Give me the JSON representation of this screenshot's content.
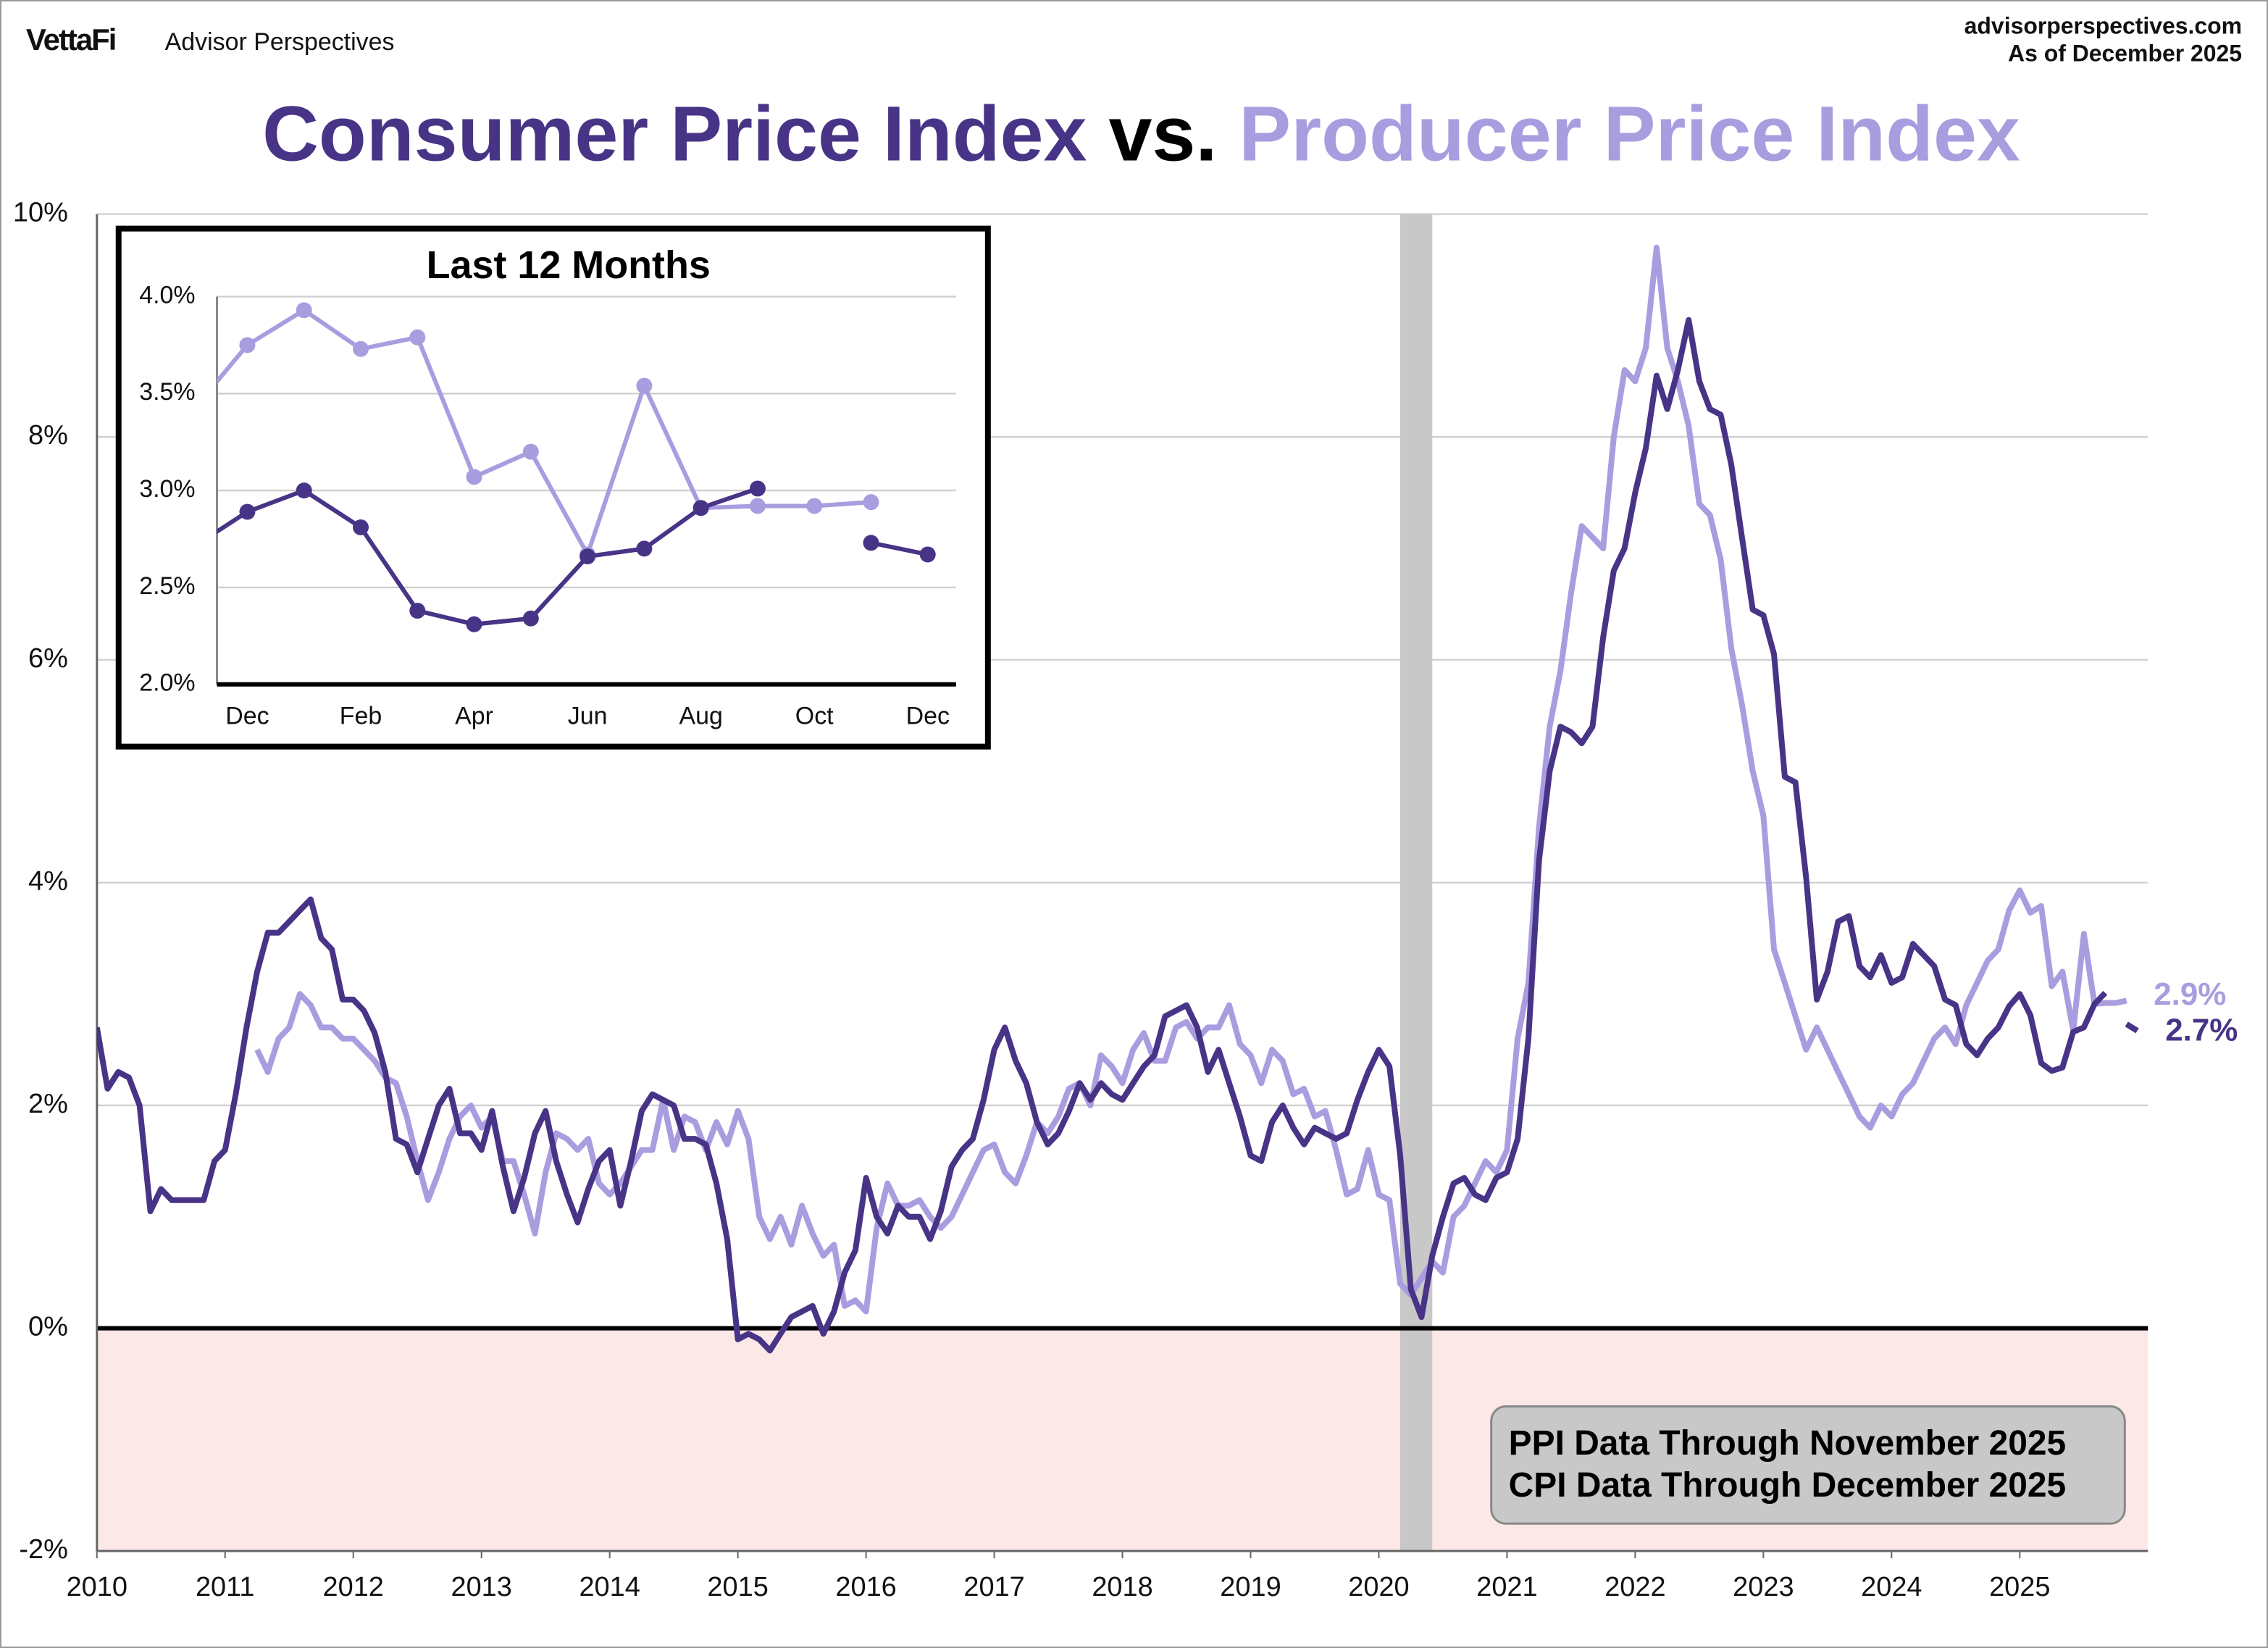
{
  "header": {
    "brand": "VettaFi",
    "product": "Advisor Perspectives",
    "site": "advisorperspectives.com",
    "date": "As of December 2025"
  },
  "chart_data": [
    {
      "type": "line",
      "title": [
        "Consumer Price Index",
        "vs.",
        "Producer Price Index"
      ],
      "annotations": [
        "PPI Data Through November 2025",
        "CPI Data Through December 2025"
      ],
      "x": [
        2010,
        2010.083,
        2010.167,
        2010.25,
        2010.333,
        2010.417,
        2010.5,
        2010.583,
        2010.667,
        2010.75,
        2010.833,
        2010.917,
        2011,
        2011.083,
        2011.167,
        2011.25,
        2011.333,
        2011.417,
        2011.5,
        2011.583,
        2011.667,
        2011.75,
        2011.833,
        2011.917,
        2012,
        2012.083,
        2012.167,
        2012.25,
        2012.333,
        2012.417,
        2012.5,
        2012.583,
        2012.667,
        2012.75,
        2012.833,
        2012.917,
        2013,
        2013.083,
        2013.167,
        2013.25,
        2013.333,
        2013.417,
        2013.5,
        2013.583,
        2013.667,
        2013.75,
        2013.833,
        2013.917,
        2014,
        2014.083,
        2014.167,
        2014.25,
        2014.333,
        2014.417,
        2014.5,
        2014.583,
        2014.667,
        2014.75,
        2014.833,
        2014.917,
        2015,
        2015.083,
        2015.167,
        2015.25,
        2015.333,
        2015.417,
        2015.5,
        2015.583,
        2015.667,
        2015.75,
        2015.833,
        2015.917,
        2016,
        2016.083,
        2016.167,
        2016.25,
        2016.333,
        2016.417,
        2016.5,
        2016.583,
        2016.667,
        2016.75,
        2016.833,
        2016.917,
        2017,
        2017.083,
        2017.167,
        2017.25,
        2017.333,
        2017.417,
        2017.5,
        2017.583,
        2017.667,
        2017.75,
        2017.833,
        2017.917,
        2018,
        2018.083,
        2018.167,
        2018.25,
        2018.333,
        2018.417,
        2018.5,
        2018.583,
        2018.667,
        2018.75,
        2018.833,
        2018.917,
        2019,
        2019.083,
        2019.167,
        2019.25,
        2019.333,
        2019.417,
        2019.5,
        2019.583,
        2019.667,
        2019.75,
        2019.833,
        2019.917,
        2020,
        2020.083,
        2020.167,
        2020.25,
        2020.333,
        2020.417,
        2020.5,
        2020.583,
        2020.667,
        2020.75,
        2020.833,
        2020.917,
        2021,
        2021.083,
        2021.167,
        2021.25,
        2021.333,
        2021.417,
        2021.5,
        2021.583,
        2021.667,
        2021.75,
        2021.833,
        2021.917,
        2022,
        2022.083,
        2022.167,
        2022.25,
        2022.333,
        2022.417,
        2022.5,
        2022.583,
        2022.667,
        2022.75,
        2022.833,
        2022.917,
        2023,
        2023.083,
        2023.167,
        2023.25,
        2023.333,
        2023.417,
        2023.5,
        2023.583,
        2023.667,
        2023.75,
        2023.833,
        2023.917,
        2024,
        2024.083,
        2024.167,
        2024.25,
        2024.333,
        2024.417,
        2024.5,
        2024.583,
        2024.667,
        2024.75,
        2024.833,
        2024.917,
        2025,
        2025.083,
        2025.167,
        2025.25,
        2025.333,
        2025.417,
        2025.5,
        2025.583,
        2025.667,
        2025.75,
        2025.833,
        2025.917
      ],
      "series": [
        {
          "name": "Consumer Price Index",
          "color": "#483486",
          "end_label": "2.7%",
          "values": [
            2.7,
            2.15,
            2.3,
            2.25,
            2.0,
            1.05,
            1.25,
            1.15,
            1.15,
            1.15,
            1.15,
            1.5,
            1.6,
            2.1,
            2.7,
            3.2,
            3.55,
            3.55,
            3.65,
            3.75,
            3.85,
            3.5,
            3.4,
            2.95,
            2.95,
            2.85,
            2.65,
            2.3,
            1.7,
            1.65,
            1.4,
            1.7,
            2.0,
            2.15,
            1.75,
            1.75,
            1.6,
            1.95,
            1.45,
            1.05,
            1.35,
            1.75,
            1.95,
            1.5,
            1.2,
            0.95,
            1.25,
            1.5,
            1.6,
            1.1,
            1.5,
            1.95,
            2.1,
            2.05,
            2.0,
            1.7,
            1.7,
            1.65,
            1.3,
            0.8,
            -0.1,
            -0.05,
            -0.1,
            -0.2,
            -0.05,
            0.1,
            0.15,
            0.2,
            -0.05,
            0.15,
            0.5,
            0.7,
            1.35,
            1.0,
            0.85,
            1.1,
            1.0,
            1.0,
            0.8,
            1.05,
            1.45,
            1.6,
            1.7,
            2.05,
            2.5,
            2.7,
            2.4,
            2.2,
            1.85,
            1.65,
            1.75,
            1.95,
            2.2,
            2.05,
            2.2,
            2.1,
            2.05,
            2.2,
            2.35,
            2.45,
            2.8,
            2.85,
            2.9,
            2.7,
            2.3,
            2.5,
            2.2,
            1.9,
            1.55,
            1.5,
            1.85,
            2.0,
            1.8,
            1.65,
            1.8,
            1.75,
            1.7,
            1.75,
            2.05,
            2.3,
            2.5,
            2.35,
            1.55,
            0.35,
            0.1,
            0.65,
            1.0,
            1.3,
            1.35,
            1.2,
            1.15,
            1.35,
            1.4,
            1.7,
            2.6,
            4.2,
            5.0,
            5.4,
            5.35,
            5.25,
            5.4,
            6.2,
            6.8,
            7.0,
            7.5,
            7.9,
            8.55,
            8.25,
            8.6,
            9.05,
            8.5,
            8.25,
            8.2,
            7.75,
            7.1,
            6.45,
            6.4,
            6.05,
            4.95,
            4.9,
            4.05,
            2.95,
            3.2,
            3.65,
            3.7,
            3.25,
            3.15,
            3.35,
            3.1,
            3.15,
            3.45,
            3.35,
            3.25,
            2.95,
            2.9,
            2.55,
            2.45,
            2.6,
            2.7,
            2.89,
            3.0,
            2.81,
            2.38,
            2.31,
            2.34,
            2.66,
            2.7,
            2.91,
            3.01,
            null,
            2.73,
            2.67
          ]
        },
        {
          "name": "Producer Price Index",
          "color": "#a99de0",
          "end_label": "2.9%",
          "values": [
            null,
            null,
            null,
            null,
            null,
            null,
            null,
            null,
            null,
            null,
            null,
            null,
            null,
            null,
            null,
            2.5,
            2.3,
            2.6,
            2.7,
            3.0,
            2.9,
            2.7,
            2.7,
            2.6,
            2.6,
            2.5,
            2.4,
            2.25,
            2.2,
            1.9,
            1.5,
            1.15,
            1.4,
            1.7,
            1.9,
            2.0,
            1.8,
            1.9,
            1.5,
            1.5,
            1.2,
            0.85,
            1.4,
            1.75,
            1.7,
            1.6,
            1.7,
            1.3,
            1.2,
            1.3,
            1.45,
            1.6,
            1.6,
            2.05,
            1.6,
            1.9,
            1.85,
            1.6,
            1.85,
            1.65,
            1.95,
            1.7,
            1.0,
            0.8,
            1.0,
            0.75,
            1.1,
            0.85,
            0.65,
            0.75,
            0.2,
            0.25,
            0.15,
            0.9,
            1.3,
            1.1,
            1.1,
            1.15,
            1.0,
            0.9,
            1.0,
            1.2,
            1.4,
            1.6,
            1.65,
            1.4,
            1.3,
            1.55,
            1.85,
            1.75,
            1.9,
            2.15,
            2.2,
            2.0,
            2.45,
            2.35,
            2.2,
            2.5,
            2.65,
            2.4,
            2.4,
            2.7,
            2.75,
            2.6,
            2.7,
            2.7,
            2.9,
            2.55,
            2.45,
            2.2,
            2.5,
            2.4,
            2.1,
            2.15,
            1.9,
            1.95,
            1.6,
            1.2,
            1.25,
            1.6,
            1.2,
            1.15,
            0.4,
            0.3,
            0.45,
            0.6,
            0.5,
            1.0,
            1.1,
            1.3,
            1.5,
            1.4,
            1.6,
            2.6,
            3.1,
            4.5,
            5.4,
            5.9,
            6.6,
            7.2,
            7.1,
            7.0,
            8.0,
            8.6,
            8.5,
            8.8,
            9.7,
            8.8,
            8.5,
            8.1,
            7.4,
            7.3,
            6.9,
            6.1,
            5.6,
            5.0,
            4.6,
            3.4,
            3.1,
            2.8,
            2.5,
            2.7,
            2.5,
            2.3,
            2.1,
            1.9,
            1.8,
            2.0,
            1.9,
            2.1,
            2.2,
            2.4,
            2.6,
            2.7,
            2.55,
            2.9,
            3.1,
            3.3,
            3.4,
            3.75,
            3.93,
            3.73,
            3.79,
            3.07,
            3.2,
            2.67,
            3.54,
            2.91,
            2.92,
            2.92,
            2.94,
            null
          ]
        }
      ],
      "xlim": [
        2010,
        2026
      ],
      "xticks": [
        2010,
        2011,
        2012,
        2013,
        2014,
        2015,
        2016,
        2017,
        2018,
        2019,
        2020,
        2021,
        2022,
        2023,
        2024,
        2025
      ],
      "ylim": [
        -2,
        10
      ],
      "yticks": [
        {
          "value": -2,
          "label": "-2%"
        },
        {
          "value": 0,
          "label": "0%"
        },
        {
          "value": 2,
          "label": "2%"
        },
        {
          "value": 4,
          "label": "4%"
        },
        {
          "value": 6,
          "label": "6%"
        },
        {
          "value": 8,
          "label": "8%"
        },
        {
          "value": 10,
          "label": "10%"
        }
      ],
      "grid": true,
      "shaded_periods": [
        [
          2020.167,
          2020.417
        ]
      ]
    },
    {
      "type": "line",
      "title": "Last 12 Months",
      "markers": true,
      "categories": [
        null,
        "Dec",
        null,
        "Feb",
        null,
        "Apr",
        null,
        "Jun",
        null,
        "Aug",
        null,
        "Oct",
        null,
        "Dec"
      ],
      "series": [
        {
          "name": "Consumer Price Index",
          "color": "#483486",
          "values": [
            2.7,
            2.89,
            3.0,
            2.81,
            2.38,
            2.31,
            2.34,
            2.66,
            2.7,
            2.91,
            3.01,
            null,
            2.73,
            2.67
          ]
        },
        {
          "name": "Producer Price Index",
          "color": "#a99de0",
          "values": [
            3.4,
            3.75,
            3.93,
            3.73,
            3.79,
            3.07,
            3.2,
            2.67,
            3.54,
            2.91,
            2.92,
            2.92,
            2.94,
            null
          ]
        }
      ],
      "ylim": [
        2.0,
        4.0
      ],
      "yticks": [
        {
          "value": 2.0,
          "label": "2.0%"
        },
        {
          "value": 2.5,
          "label": "2.5%"
        },
        {
          "value": 3.0,
          "label": "3.0%"
        },
        {
          "value": 3.5,
          "label": "3.5%"
        },
        {
          "value": 4.0,
          "label": "4.0%"
        }
      ],
      "grid": true
    }
  ]
}
